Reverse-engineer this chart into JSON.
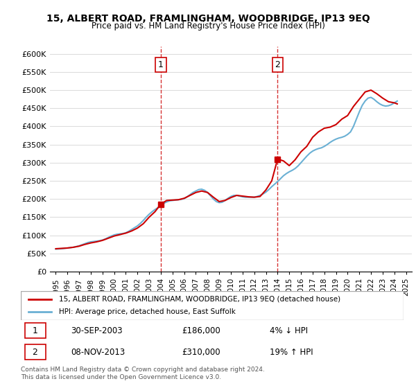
{
  "title": "15, ALBERT ROAD, FRAMLINGHAM, WOODBRIDGE, IP13 9EQ",
  "subtitle": "Price paid vs. HM Land Registry's House Price Index (HPI)",
  "ylabel_ticks": [
    "£0",
    "£50K",
    "£100K",
    "£150K",
    "£200K",
    "£250K",
    "£300K",
    "£350K",
    "£400K",
    "£450K",
    "£500K",
    "£550K",
    "£600K"
  ],
  "ytick_values": [
    0,
    50000,
    100000,
    150000,
    200000,
    250000,
    300000,
    350000,
    400000,
    450000,
    500000,
    550000,
    600000
  ],
  "ylim": [
    0,
    620000
  ],
  "hpi_color": "#6ab0d4",
  "price_color": "#cc0000",
  "sale1_date": "30-SEP-2003",
  "sale1_price": 186000,
  "sale1_pct": "4%",
  "sale1_dir": "↓",
  "sale2_date": "08-NOV-2013",
  "sale2_price": 310000,
  "sale2_pct": "19%",
  "sale2_dir": "↑",
  "legend_line1": "15, ALBERT ROAD, FRAMLINGHAM, WOODBRIDGE, IP13 9EQ (detached house)",
  "legend_line2": "HPI: Average price, detached house, East Suffolk",
  "footer": "Contains HM Land Registry data © Crown copyright and database right 2024.\nThis data is licensed under the Open Government Licence v3.0.",
  "vline1_x": 2004.0,
  "vline2_x": 2014.0,
  "hpi_data_x": [
    1995,
    1995.25,
    1995.5,
    1995.75,
    1996,
    1996.25,
    1996.5,
    1996.75,
    1997,
    1997.25,
    1997.5,
    1997.75,
    1998,
    1998.25,
    1998.5,
    1998.75,
    1999,
    1999.25,
    1999.5,
    1999.75,
    2000,
    2000.25,
    2000.5,
    2000.75,
    2001,
    2001.25,
    2001.5,
    2001.75,
    2002,
    2002.25,
    2002.5,
    2002.75,
    2003,
    2003.25,
    2003.5,
    2003.75,
    2004,
    2004.25,
    2004.5,
    2004.75,
    2005,
    2005.25,
    2005.5,
    2005.75,
    2006,
    2006.25,
    2006.5,
    2006.75,
    2007,
    2007.25,
    2007.5,
    2007.75,
    2008,
    2008.25,
    2008.5,
    2008.75,
    2009,
    2009.25,
    2009.5,
    2009.75,
    2010,
    2010.25,
    2010.5,
    2010.75,
    2011,
    2011.25,
    2011.5,
    2011.75,
    2012,
    2012.25,
    2012.5,
    2012.75,
    2013,
    2013.25,
    2013.5,
    2013.75,
    2014,
    2014.25,
    2014.5,
    2014.75,
    2015,
    2015.25,
    2015.5,
    2015.75,
    2016,
    2016.25,
    2016.5,
    2016.75,
    2017,
    2017.25,
    2017.5,
    2017.75,
    2018,
    2018.25,
    2018.5,
    2018.75,
    2019,
    2019.25,
    2019.5,
    2019.75,
    2020,
    2020.25,
    2020.5,
    2020.75,
    2021,
    2021.25,
    2021.5,
    2021.75,
    2022,
    2022.25,
    2022.5,
    2022.75,
    2023,
    2023.25,
    2023.5,
    2023.75,
    2024,
    2024.25
  ],
  "hpi_data_y": [
    62000,
    62500,
    63000,
    64000,
    65000,
    66000,
    67000,
    69000,
    71000,
    74000,
    77000,
    80000,
    82000,
    83000,
    84000,
    85000,
    87000,
    90000,
    94000,
    98000,
    101000,
    103000,
    104000,
    105000,
    107000,
    111000,
    116000,
    121000,
    126000,
    133000,
    141000,
    150000,
    158000,
    165000,
    171000,
    176000,
    182000,
    188000,
    192000,
    195000,
    196000,
    197000,
    198000,
    199000,
    201000,
    206000,
    212000,
    218000,
    222000,
    226000,
    227000,
    224000,
    218000,
    209000,
    200000,
    193000,
    190000,
    191000,
    196000,
    202000,
    207000,
    210000,
    210000,
    208000,
    206000,
    205000,
    205000,
    205000,
    205000,
    207000,
    210000,
    214000,
    219000,
    226000,
    234000,
    241000,
    248000,
    256000,
    264000,
    270000,
    275000,
    279000,
    284000,
    291000,
    300000,
    309000,
    318000,
    326000,
    332000,
    336000,
    339000,
    341000,
    345000,
    350000,
    356000,
    361000,
    365000,
    368000,
    370000,
    373000,
    378000,
    385000,
    400000,
    420000,
    440000,
    458000,
    470000,
    478000,
    480000,
    475000,
    468000,
    462000,
    458000,
    456000,
    457000,
    460000,
    465000,
    470000
  ],
  "price_data_x": [
    1995,
    1995.5,
    1996,
    1996.5,
    1997,
    1997.5,
    1998,
    1998.5,
    1999,
    1999.5,
    2000,
    2000.5,
    2001,
    2001.5,
    2002,
    2002.5,
    2003,
    2003.5,
    2004.0,
    2004.5,
    2005,
    2005.5,
    2006,
    2006.5,
    2007,
    2007.5,
    2008,
    2008.5,
    2009,
    2009.5,
    2010,
    2010.5,
    2011,
    2011.5,
    2012,
    2012.5,
    2013,
    2013.5,
    2014.0,
    2014.5,
    2015,
    2015.5,
    2016,
    2016.5,
    2017,
    2017.5,
    2018,
    2018.5,
    2019,
    2019.5,
    2020,
    2020.5,
    2021,
    2021.5,
    2022,
    2022.5,
    2023,
    2023.5,
    2024,
    2024.25
  ],
  "price_data_y": [
    63000,
    64000,
    65000,
    67000,
    70000,
    75000,
    79000,
    82000,
    86000,
    92000,
    98000,
    102000,
    106000,
    112000,
    120000,
    132000,
    150000,
    165000,
    186000,
    196000,
    197000,
    198000,
    202000,
    210000,
    218000,
    222000,
    218000,
    205000,
    193000,
    196000,
    204000,
    210000,
    208000,
    206000,
    205000,
    207000,
    225000,
    250000,
    310000,
    305000,
    292000,
    308000,
    330000,
    345000,
    370000,
    385000,
    395000,
    398000,
    405000,
    420000,
    430000,
    455000,
    475000,
    495000,
    500000,
    490000,
    478000,
    468000,
    465000,
    462000
  ],
  "xtick_years": [
    1995,
    1996,
    1997,
    1998,
    1999,
    2000,
    2001,
    2002,
    2003,
    2004,
    2005,
    2006,
    2007,
    2008,
    2009,
    2010,
    2011,
    2012,
    2013,
    2014,
    2015,
    2016,
    2017,
    2018,
    2019,
    2020,
    2021,
    2022,
    2023,
    2024,
    2025
  ],
  "xlim": [
    1994.5,
    2025.5
  ],
  "marker1_x": 2004.0,
  "marker1_y": 186000,
  "marker2_x": 2014.0,
  "marker2_y": 310000
}
